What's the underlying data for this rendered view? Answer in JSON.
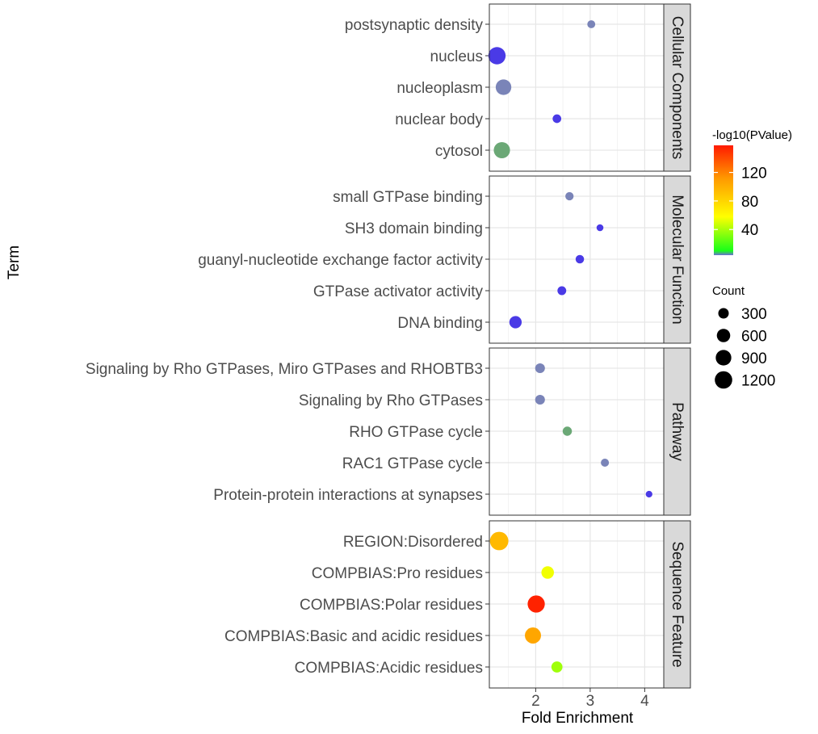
{
  "chart_data": {
    "type": "scatter",
    "title": "",
    "xlabel": "Fold Enrichment",
    "ylabel": "Term",
    "xlim": [
      1.15,
      4.35
    ],
    "x_ticks": [
      "2",
      "3",
      "4"
    ],
    "x_tick_values": [
      2,
      3,
      4
    ],
    "grid": true,
    "panels": [
      {
        "name": "Cellular Components",
        "terms": [
          "postsynaptic density",
          "nucleus",
          "nucleoplasm",
          "nuclear body",
          "cytosol"
        ],
        "fold_enrichment": [
          3.02,
          1.29,
          1.41,
          2.39,
          1.38
        ],
        "neg_log10_pvalue": [
          6,
          14,
          4,
          10,
          27
        ],
        "count": [
          120,
          1170,
          900,
          160,
          1000
        ]
      },
      {
        "name": "Molecular Function",
        "terms": [
          "small GTPase binding",
          "SH3 domain binding",
          "guanyl-nucleotide exchange factor activity",
          "GTPase activator activity",
          "DNA binding"
        ],
        "fold_enrichment": [
          2.62,
          3.18,
          2.81,
          2.48,
          1.63
        ],
        "neg_log10_pvalue": [
          7,
          11,
          9,
          10,
          12
        ],
        "count": [
          140,
          70,
          150,
          170,
          480
        ]
      },
      {
        "name": "Pathway",
        "terms": [
          "Signaling by Rho GTPases, Miro GTPases and RHOBTB3",
          "Signaling by Rho GTPases",
          "RHO GTPase cycle",
          "RAC1 GTPase cycle",
          "Protein-protein interactions at synapses"
        ],
        "fold_enrichment": [
          2.08,
          2.08,
          2.58,
          3.27,
          4.08
        ],
        "neg_log10_pvalue": [
          4,
          4,
          23,
          7,
          9
        ],
        "count": [
          240,
          240,
          200,
          130,
          60
        ]
      },
      {
        "name": "Sequence Feature",
        "terms": [
          "REGION:Disordered",
          "COMPBIAS:Pro residues",
          "COMPBIAS:Polar residues",
          "COMPBIAS:Basic and acidic residues",
          "COMPBIAS:Acidic residues"
        ],
        "fold_enrichment": [
          1.33,
          2.22,
          2.01,
          1.95,
          2.39
        ],
        "neg_log10_pvalue": [
          95,
          55,
          155,
          105,
          38
        ],
        "count": [
          1380,
          500,
          1150,
          980,
          350
        ]
      }
    ],
    "color_legend": {
      "title": "-log10(PValue)",
      "ticks": [
        "40",
        "80",
        "120"
      ],
      "tick_values": [
        40,
        80,
        120
      ],
      "range": [
        4,
        158
      ],
      "colors": [
        "#6b6bd6",
        "#19ff19",
        "#ffff00",
        "#ff9900",
        "#ff1a00"
      ]
    },
    "size_legend": {
      "title": "Count",
      "labels": [
        "300",
        "600",
        "900",
        "1200"
      ],
      "values": [
        300,
        600,
        900,
        1200
      ]
    },
    "legend_position": "right"
  }
}
